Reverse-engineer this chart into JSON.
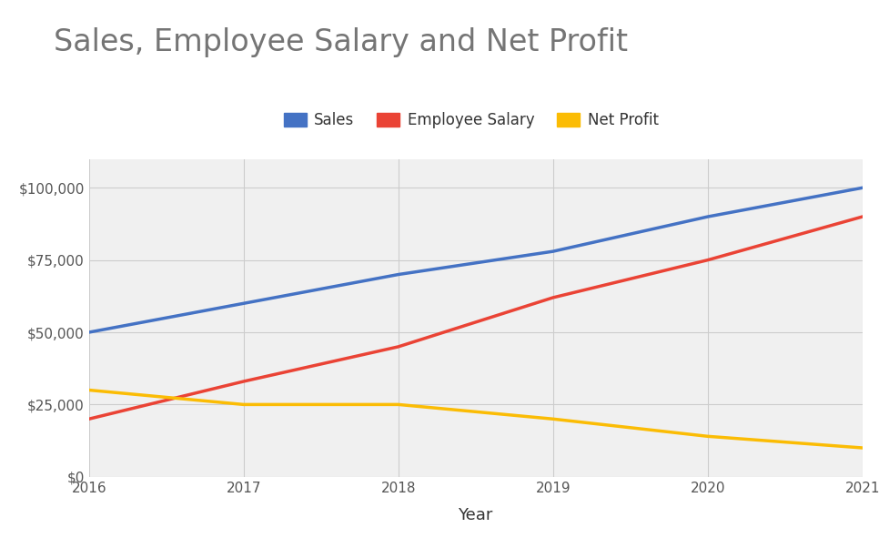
{
  "title": "Sales, Employee Salary and Net Profit",
  "xlabel": "Year",
  "ylabel": "",
  "years": [
    2016,
    2017,
    2018,
    2019,
    2020,
    2021
  ],
  "sales": [
    50000,
    60000,
    70000,
    78000,
    90000,
    100000
  ],
  "employee_salary": [
    20000,
    33000,
    45000,
    62000,
    75000,
    90000
  ],
  "net_profit": [
    30000,
    25000,
    25000,
    20000,
    14000,
    10000
  ],
  "sales_color": "#4472C4",
  "salary_color": "#EA4335",
  "profit_color": "#FBBC04",
  "background_color": "#ffffff",
  "plot_bg_color": "#f0f0f0",
  "title_color": "#757575",
  "title_fontsize": 24,
  "legend_fontsize": 12,
  "tick_fontsize": 11,
  "xlabel_fontsize": 13,
  "line_width": 2.5,
  "ylim": [
    0,
    110000
  ],
  "yticks": [
    0,
    25000,
    50000,
    75000,
    100000
  ],
  "grid_color": "#cccccc",
  "sales_label": "Sales",
  "salary_label": "Employee Salary",
  "profit_label": "Net Profit"
}
